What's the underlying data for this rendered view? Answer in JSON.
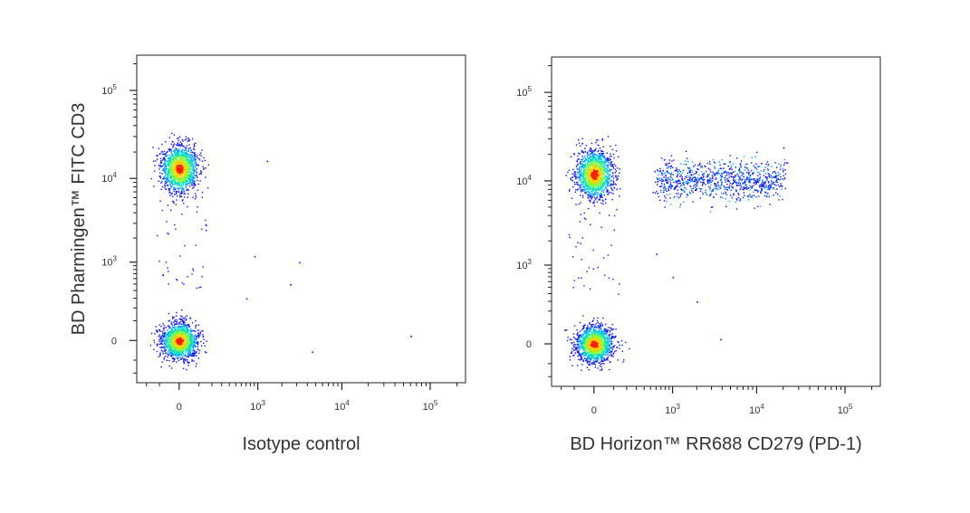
{
  "chart_data": [
    {
      "type": "scatter",
      "subtype": "flow-cytometry-density-dot-plot",
      "title": "",
      "xlabel": "Isotype control",
      "ylabel": "BD Pharmingen™ FITC CD3",
      "x_scale": "biexponential",
      "y_scale": "biexponential",
      "x_ticks": [
        {
          "value": "0",
          "exp": ""
        },
        {
          "value": "10",
          "exp": "3"
        },
        {
          "value": "10",
          "exp": "4"
        },
        {
          "value": "10",
          "exp": "5"
        }
      ],
      "y_ticks": [
        {
          "value": "0",
          "exp": ""
        },
        {
          "value": "10",
          "exp": "3"
        },
        {
          "value": "10",
          "exp": "4"
        },
        {
          "value": "10",
          "exp": "5"
        }
      ],
      "xlim": [
        -300,
        250000
      ],
      "ylim": [
        -300,
        250000
      ],
      "populations": [
        {
          "name": "",
          "center": [
            0,
            13000
          ],
          "spread": [
            90,
            0.35
          ],
          "density": "high",
          "description": "CD3+ events"
        },
        {
          "name": "",
          "center": [
            0,
            0
          ],
          "spread": [
            90,
            120
          ],
          "density": "high",
          "description": "CD3- events"
        }
      ],
      "scattered_events": [
        [
          900,
          1200
        ],
        [
          1300,
          16000
        ],
        [
          2500,
          500
        ],
        [
          3200,
          1000
        ],
        [
          60000,
          20
        ],
        [
          4500,
          -50
        ],
        [
          700,
          300
        ]
      ],
      "density_colormap": [
        "#0000ff",
        "#00c0ff",
        "#00ff80",
        "#ffff00",
        "#ff0000"
      ]
    },
    {
      "type": "scatter",
      "subtype": "flow-cytometry-density-dot-plot",
      "title": "",
      "xlabel": "BD Horizon™ RR688 CD279 (PD-1)",
      "ylabel": "",
      "x_scale": "biexponential",
      "y_scale": "biexponential",
      "x_ticks": [
        {
          "value": "0",
          "exp": ""
        },
        {
          "value": "10",
          "exp": "3"
        },
        {
          "value": "10",
          "exp": "4"
        },
        {
          "value": "10",
          "exp": "5"
        }
      ],
      "y_ticks": [
        {
          "value": "0",
          "exp": ""
        },
        {
          "value": "10",
          "exp": "3"
        },
        {
          "value": "10",
          "exp": "4"
        },
        {
          "value": "10",
          "exp": "5"
        }
      ],
      "xlim": [
        -300,
        250000
      ],
      "ylim": [
        -300,
        250000
      ],
      "populations": [
        {
          "name": "",
          "center": [
            0,
            12000
          ],
          "spread": [
            90,
            0.35
          ],
          "density": "high",
          "description": "CD3+ PD-1- events"
        },
        {
          "name": "",
          "center": [
            3000,
            10000
          ],
          "spread": [
            1.2,
            0.35
          ],
          "density": "low",
          "description": "CD3+ PD-1+ tail"
        },
        {
          "name": "",
          "center": [
            0,
            0
          ],
          "spread": [
            90,
            120
          ],
          "density": "high",
          "description": "CD3- events"
        }
      ],
      "scattered_events": [
        [
          600,
          1400
        ],
        [
          1000,
          700
        ],
        [
          2000,
          300
        ],
        [
          3800,
          20
        ],
        [
          20000,
          24000
        ]
      ],
      "density_colormap": [
        "#0000ff",
        "#00c0ff",
        "#00ff80",
        "#ffff00",
        "#ff0000"
      ]
    }
  ]
}
